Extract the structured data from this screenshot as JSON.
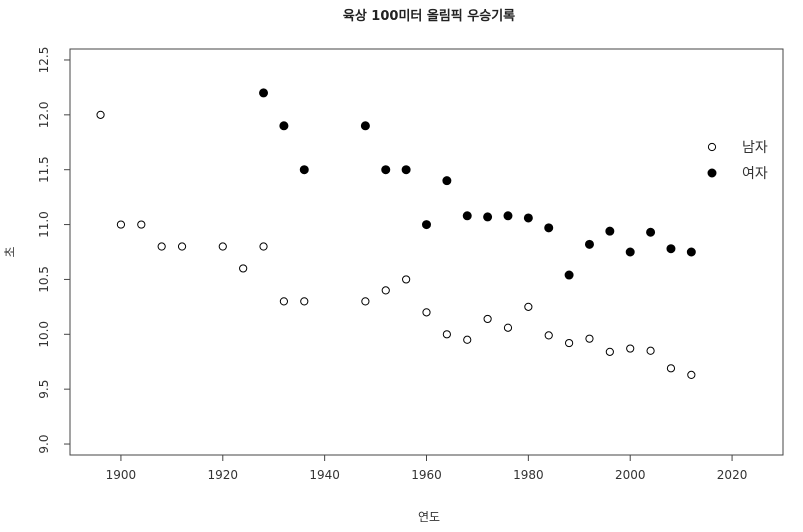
{
  "chart_data": {
    "type": "scatter",
    "title": "육상 100미터 올림픽 우승기록",
    "xlabel": "연도",
    "ylabel": "초",
    "xlim": [
      1890,
      2030
    ],
    "ylim": [
      8.9,
      12.6
    ],
    "xticks": [
      1900,
      1920,
      1940,
      1960,
      1980,
      2000,
      2020
    ],
    "yticks": [
      9.0,
      9.5,
      10.0,
      10.5,
      11.0,
      11.5,
      12.0,
      12.5
    ],
    "grid": false,
    "legend_position": "right",
    "series": [
      {
        "name": "남자",
        "marker": "open-circle",
        "points": [
          [
            1896,
            12.0
          ],
          [
            1900,
            11.0
          ],
          [
            1904,
            11.0
          ],
          [
            1908,
            10.8
          ],
          [
            1912,
            10.8
          ],
          [
            1920,
            10.8
          ],
          [
            1924,
            10.6
          ],
          [
            1928,
            10.8
          ],
          [
            1932,
            10.3
          ],
          [
            1936,
            10.3
          ],
          [
            1948,
            10.3
          ],
          [
            1952,
            10.4
          ],
          [
            1956,
            10.5
          ],
          [
            1960,
            10.2
          ],
          [
            1964,
            10.0
          ],
          [
            1968,
            9.95
          ],
          [
            1972,
            10.14
          ],
          [
            1976,
            10.06
          ],
          [
            1980,
            10.25
          ],
          [
            1984,
            9.99
          ],
          [
            1988,
            9.92
          ],
          [
            1992,
            9.96
          ],
          [
            1996,
            9.84
          ],
          [
            2000,
            9.87
          ],
          [
            2004,
            9.85
          ],
          [
            2008,
            9.69
          ],
          [
            2012,
            9.63
          ]
        ]
      },
      {
        "name": "여자",
        "marker": "filled-circle",
        "points": [
          [
            1928,
            12.2
          ],
          [
            1932,
            11.9
          ],
          [
            1936,
            11.5
          ],
          [
            1948,
            11.9
          ],
          [
            1952,
            11.5
          ],
          [
            1956,
            11.5
          ],
          [
            1960,
            11.0
          ],
          [
            1964,
            11.4
          ],
          [
            1968,
            11.08
          ],
          [
            1972,
            11.07
          ],
          [
            1976,
            11.08
          ],
          [
            1980,
            11.06
          ],
          [
            1984,
            10.97
          ],
          [
            1988,
            10.54
          ],
          [
            1992,
            10.82
          ],
          [
            1996,
            10.94
          ],
          [
            2000,
            10.75
          ],
          [
            2004,
            10.93
          ],
          [
            2008,
            10.78
          ],
          [
            2012,
            10.75
          ]
        ]
      }
    ]
  }
}
